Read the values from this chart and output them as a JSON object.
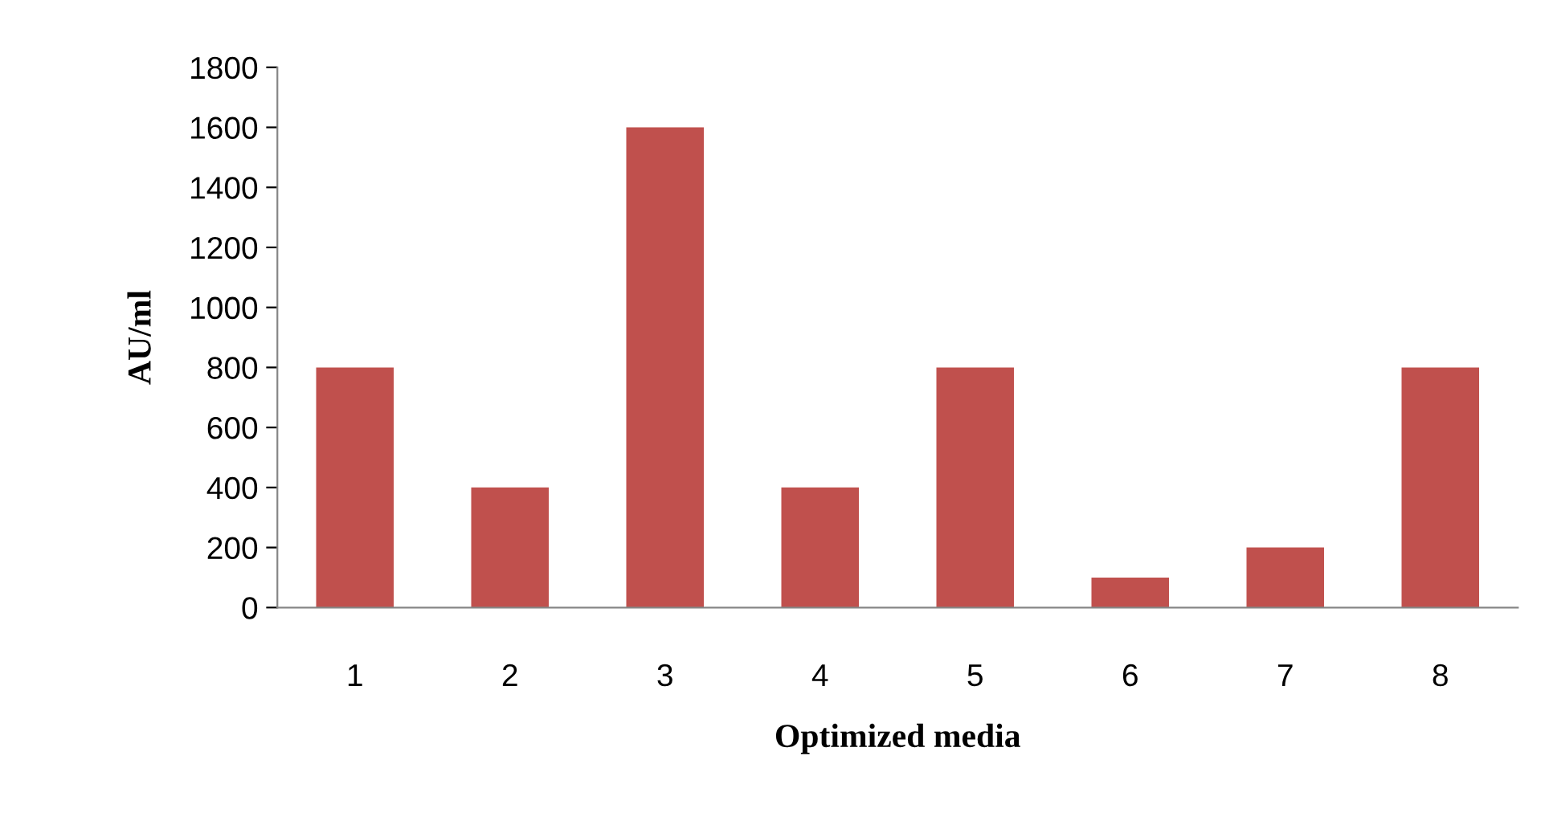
{
  "chart_data": {
    "type": "bar",
    "xlabel": "Optimized media",
    "ylabel": "AU/ml",
    "categories": [
      "1",
      "2",
      "3",
      "4",
      "5",
      "6",
      "7",
      "8"
    ],
    "values": [
      800,
      400,
      1600,
      400,
      800,
      100,
      200,
      800
    ],
    "color": "#c0504d",
    "ylim": [
      0,
      1800
    ],
    "yticks": [
      0,
      200,
      400,
      600,
      800,
      1000,
      1200,
      1400,
      1600,
      1800
    ],
    "grid": false,
    "legend": false
  }
}
